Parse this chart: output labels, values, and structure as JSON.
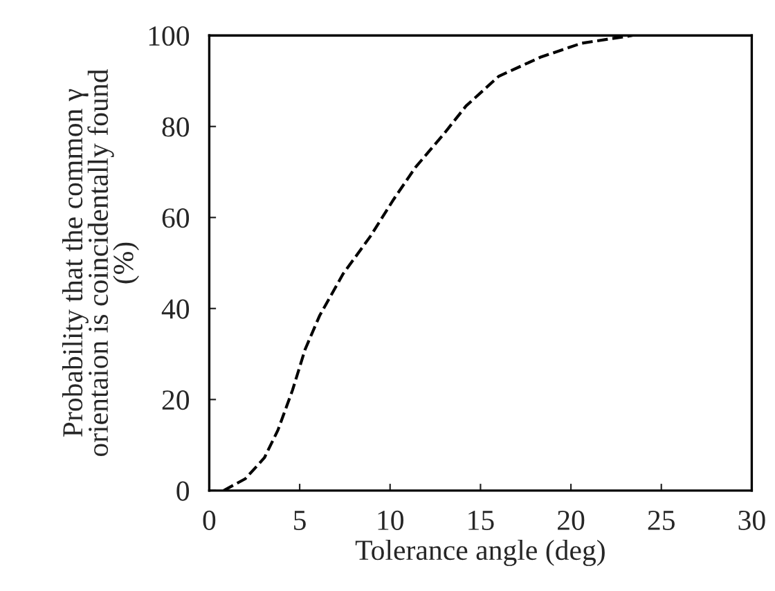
{
  "chart_data": {
    "type": "line",
    "xlabel": "Tolerance angle (deg)",
    "ylabel": "Probability that the common γ\norientaion is coincidentally found\n(%)",
    "x": [
      0.8,
      2.0,
      3.05,
      3.8,
      4.6,
      5.3,
      6.1,
      7.4,
      8.9,
      10.2,
      11.4,
      13.0,
      14.2,
      16.0,
      18.3,
      20.6,
      23.4
    ],
    "series": [
      {
        "color": "#000000",
        "values": [
          0,
          2.6,
          7.2,
          13.3,
          22,
          31,
          38.4,
          47.6,
          55.8,
          64,
          71,
          78.5,
          84.5,
          91,
          95.2,
          98.3,
          100
        ]
      }
    ],
    "xlim": [
      0,
      30
    ],
    "ylim": [
      0,
      100
    ],
    "xticks": [
      0,
      5,
      10,
      15,
      20,
      25,
      30
    ],
    "yticks": [
      0,
      20,
      40,
      60,
      80,
      100
    ],
    "grid": false,
    "legend": false,
    "marker": "none",
    "line_style": "dashed"
  }
}
